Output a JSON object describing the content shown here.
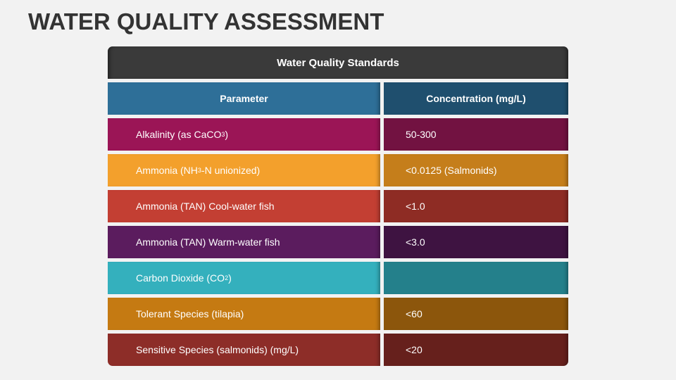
{
  "title": "WATER QUALITY ASSESSMENT",
  "table": {
    "caption": "Water Quality Standards",
    "columns": [
      "Parameter",
      "Concentration (mg/L)"
    ],
    "rows": [
      {
        "parameter_pre": "Alkalinity (as CaCO",
        "parameter_sub": "3",
        "parameter_post": ")",
        "concentration": "50-300",
        "color1": "#9b1556",
        "color2": "#721241"
      },
      {
        "parameter_pre": "Ammonia (NH",
        "parameter_sub": "3",
        "parameter_post": "-N unionized)",
        "concentration": "<0.0125 (Salmonids)",
        "color1": "#f3a02c",
        "color2": "#c57e1b"
      },
      {
        "parameter_pre": "Ammonia (TAN) Cool-water fish",
        "parameter_sub": "",
        "parameter_post": "",
        "concentration": "<1.0",
        "color1": "#c33f33",
        "color2": "#8e2c24"
      },
      {
        "parameter_pre": "Ammonia (TAN) Warm-water fish",
        "parameter_sub": "",
        "parameter_post": "",
        "concentration": "<3.0",
        "color1": "#5b1c5e",
        "color2": "#3e1341"
      },
      {
        "parameter_pre": "Carbon Dioxide (CO",
        "parameter_sub": "2",
        "parameter_post": ")",
        "concentration": "",
        "color1": "#34b0bd",
        "color2": "#24808b"
      },
      {
        "parameter_pre": "Tolerant Species (tilapia)",
        "parameter_sub": "",
        "parameter_post": "",
        "concentration": "<60",
        "color1": "#c57a12",
        "color2": "#8c560c"
      },
      {
        "parameter_pre": "Sensitive Species (salmonids) (mg/L)",
        "parameter_sub": "",
        "parameter_post": "",
        "concentration": "<20",
        "color1": "#8d2d28",
        "color2": "#66201c"
      }
    ],
    "header_color1": "#2e6f98",
    "header_color2": "#1f4f6e"
  }
}
